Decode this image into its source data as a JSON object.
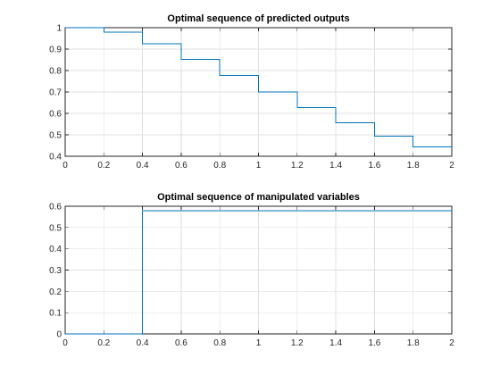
{
  "chart_data": [
    {
      "type": "line",
      "style": "stairs",
      "title": "Optimal sequence of predicted outputs",
      "xlabel": "",
      "ylabel": "",
      "xlim": [
        0,
        2
      ],
      "ylim": [
        0.4,
        1
      ],
      "xticks": [
        0,
        0.2,
        0.4,
        0.6,
        0.8,
        1,
        1.2,
        1.4,
        1.6,
        1.8,
        2
      ],
      "xtick_labels": [
        "0",
        "0.2",
        "0.4",
        "0.6",
        "0.8",
        "1",
        "1.2",
        "1.4",
        "1.6",
        "1.8",
        "2"
      ],
      "yticks": [
        0.4,
        0.5,
        0.6,
        0.7,
        0.8,
        0.9,
        1
      ],
      "ytick_labels": [
        "0.4",
        "0.5",
        "0.6",
        "0.7",
        "0.8",
        "0.9",
        "1"
      ],
      "grid": true,
      "color": "#0072bd",
      "series": [
        {
          "x": [
            0,
            0.2,
            0.4,
            0.6,
            0.8,
            1.0,
            1.2,
            1.4,
            1.6,
            1.8,
            2.0
          ],
          "values": [
            1.0,
            0.98,
            0.925,
            0.852,
            0.778,
            0.7,
            0.627,
            0.557,
            0.494,
            0.443,
            0.443
          ]
        }
      ]
    },
    {
      "type": "line",
      "style": "stairs",
      "title": "Optimal sequence of manipulated variables",
      "xlabel": "",
      "ylabel": "",
      "xlim": [
        0,
        2
      ],
      "ylim": [
        0,
        0.6
      ],
      "xticks": [
        0,
        0.2,
        0.4,
        0.6,
        0.8,
        1,
        1.2,
        1.4,
        1.6,
        1.8,
        2
      ],
      "xtick_labels": [
        "0",
        "0.2",
        "0.4",
        "0.6",
        "0.8",
        "1",
        "1.2",
        "1.4",
        "1.6",
        "1.8",
        "2"
      ],
      "yticks": [
        0,
        0.1,
        0.2,
        0.3,
        0.4,
        0.5,
        0.6
      ],
      "ytick_labels": [
        "0",
        "0.1",
        "0.2",
        "0.3",
        "0.4",
        "0.5",
        "0.6"
      ],
      "grid": true,
      "color": "#0072bd",
      "series": [
        {
          "x": [
            0,
            0.2,
            0.4,
            0.6,
            0.8,
            1.0,
            1.2,
            1.4,
            1.6,
            1.8,
            2.0
          ],
          "values": [
            0,
            0,
            0.58,
            0.58,
            0.58,
            0.58,
            0.58,
            0.58,
            0.58,
            0.58,
            0.58
          ]
        }
      ]
    }
  ]
}
